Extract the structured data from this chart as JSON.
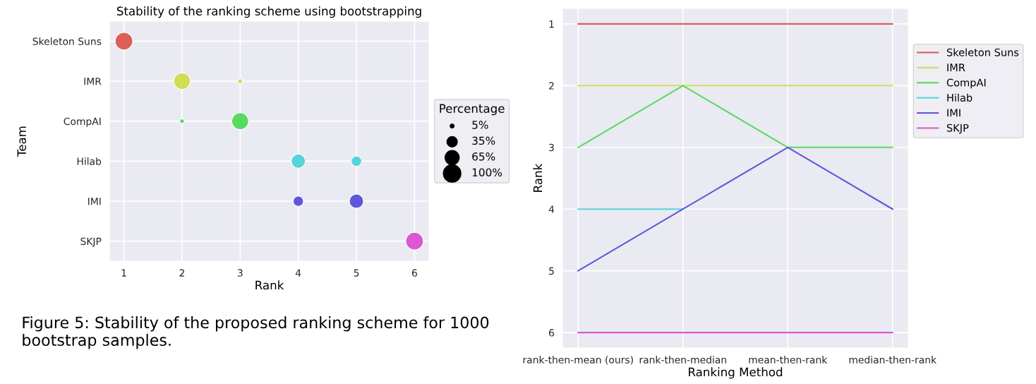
{
  "chart_data": [
    {
      "type": "bubble",
      "title": "Stability of the ranking scheme using bootstrapping",
      "xlabel": "Rank",
      "ylabel": "Team",
      "orientation": "horizontal",
      "categories": [
        "Skeleton Suns",
        "IMR",
        "CompAI",
        "Hilab",
        "IMI",
        "SKJP"
      ],
      "series": [
        {
          "values": [
            1,
            2,
            3,
            4,
            5,
            6
          ],
          "sizes": [
            100,
            90,
            92,
            65,
            65,
            100
          ],
          "colors": [
            "#db5f57",
            "#d3db57",
            "#57db5f",
            "#57d3db",
            "#5f57db",
            "#db57d3"
          ]
        },
        {
          "values": [
            null,
            3,
            2,
            5,
            4,
            null
          ],
          "sizes": [
            null,
            8,
            7,
            35,
            35,
            null
          ],
          "colors": [
            "#db5f57",
            "#d3db57",
            "#57db5f",
            "#57d3db",
            "#5f57db",
            "#db57d3"
          ]
        }
      ],
      "xlim": [
        0.75,
        6.25
      ],
      "xticks": [
        1,
        2,
        3,
        4,
        5,
        6
      ],
      "legend_title": "Percentage",
      "size_legend": [
        {
          "value": 5,
          "label": "5%"
        },
        {
          "value": 35,
          "label": "35%"
        },
        {
          "value": 65,
          "label": "65%"
        },
        {
          "value": 100,
          "label": "100%"
        }
      ],
      "legend": "right",
      "grid": true,
      "annotations": [
        "Figure 5: Stability of the proposed ranking scheme for 1000 bootstrap samples."
      ]
    },
    {
      "type": "line",
      "xlabel": "Ranking Method",
      "ylabel": "Rank",
      "categories": [
        "rank-then-mean (ours)",
        "rank-then-median",
        "mean-then-rank",
        "median-then-rank"
      ],
      "series": [
        {
          "name": "Skeleton Suns",
          "color": "#db5f57",
          "values": [
            1,
            1,
            1,
            1
          ]
        },
        {
          "name": "IMR",
          "color": "#d3db57",
          "values": [
            2,
            2,
            2,
            2
          ]
        },
        {
          "name": "CompAI",
          "color": "#57db5f",
          "values": [
            3,
            2,
            3,
            3
          ]
        },
        {
          "name": "Hilab",
          "color": "#57d3db",
          "values": [
            4,
            4,
            null,
            null
          ]
        },
        {
          "name": "IMI",
          "color": "#5f57db",
          "values": [
            5,
            4,
            3,
            4
          ]
        },
        {
          "name": "SKJP",
          "color": "#db57d3",
          "values": [
            6,
            6,
            6,
            6
          ]
        }
      ],
      "ylim": [
        6.25,
        0.75
      ],
      "yticks": [
        1,
        2,
        3,
        4,
        5,
        6
      ],
      "legend": "right",
      "grid": true
    }
  ]
}
